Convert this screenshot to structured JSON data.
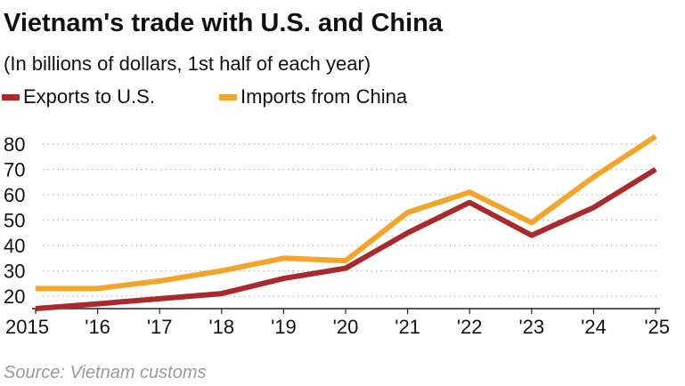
{
  "chart_data": {
    "type": "line",
    "title": "Vietnam's trade with U.S. and China",
    "subtitle": "(In billions of dollars, 1st half of each year)",
    "categories": [
      "2015",
      "'16",
      "'17",
      "'18",
      "'19",
      "'20",
      "'21",
      "'22",
      "'23",
      "'24",
      "'25"
    ],
    "series": [
      {
        "name": "Exports to U.S.",
        "color": "#a82a2d",
        "values": [
          15,
          17,
          19,
          21,
          27,
          31,
          45,
          57,
          44,
          55,
          70
        ]
      },
      {
        "name": "Imports from China",
        "color": "#f2a52a",
        "values": [
          23,
          23,
          26,
          30,
          35,
          34,
          53,
          61,
          49,
          67,
          83
        ]
      }
    ],
    "y_ticks": [
      20,
      30,
      40,
      50,
      60,
      70,
      80
    ],
    "ylim": [
      15,
      85
    ],
    "grid": true,
    "legend_position": "top-left",
    "xlabel": "",
    "ylabel": ""
  },
  "source": "Source: Vietnam customs"
}
